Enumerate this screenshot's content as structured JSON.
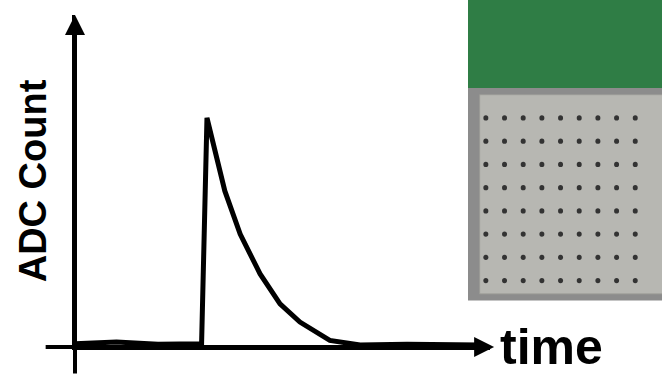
{
  "chart_data": {
    "type": "line",
    "x_label": "time",
    "y_label": "ADC Count",
    "x": [
      0,
      10,
      20,
      30,
      30.5,
      31.8,
      33.7,
      36.1,
      39.8,
      44.6,
      49.4,
      54.2,
      61.4,
      68.7,
      80,
      97.6
    ],
    "values": [
      1,
      1.5,
      0.8,
      1,
      1,
      69,
      59,
      47,
      34,
      22,
      13,
      7.5,
      2,
      0.6,
      0.8,
      0.6
    ],
    "color": "#000000",
    "xlim": [
      0,
      100
    ],
    "ylim": [
      0,
      100
    ],
    "grid": false,
    "tick_labels": false
  }
}
